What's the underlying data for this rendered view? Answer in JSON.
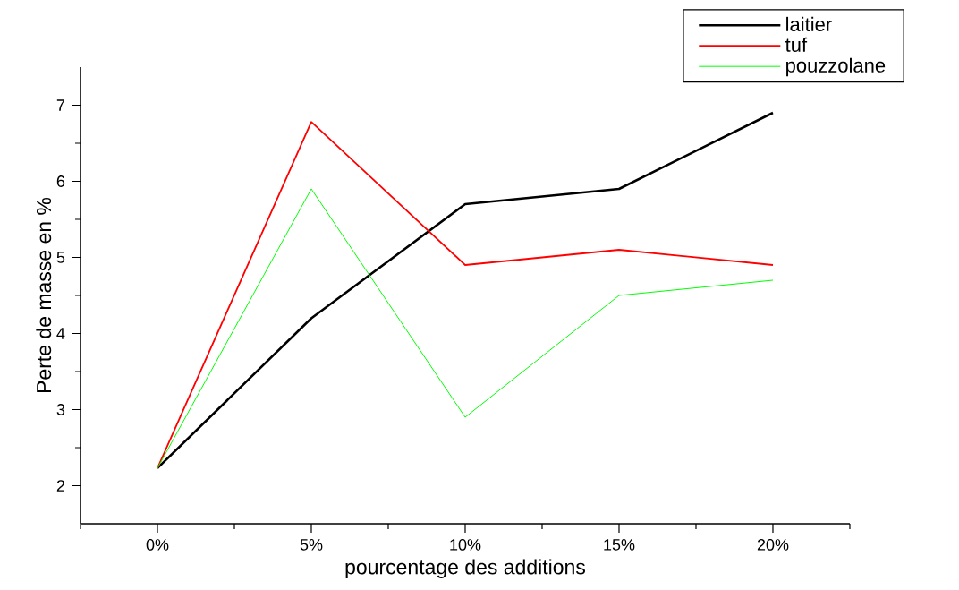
{
  "chart_data": {
    "type": "line",
    "xlabel": "pourcentage des additions",
    "ylabel": "Perte de masse en %",
    "categories": [
      "0%",
      "5%",
      "10%",
      "15%",
      "20%"
    ],
    "series": [
      {
        "name": "laitier",
        "color": "#000000",
        "values": [
          2.23,
          4.2,
          5.7,
          5.9,
          6.9
        ]
      },
      {
        "name": "tuf",
        "color": "#ff0000",
        "values": [
          2.23,
          6.78,
          4.9,
          5.1,
          4.9
        ]
      },
      {
        "name": "pouzzolane",
        "color": "#00ff00",
        "values": [
          2.23,
          5.9,
          2.9,
          4.5,
          4.7
        ]
      }
    ],
    "ylim": [
      1.5,
      7.5
    ],
    "yticks": [
      2,
      3,
      4,
      5,
      6,
      7
    ],
    "grid": false,
    "legend": "top right",
    "marker": "none",
    "line_style": "solid"
  }
}
